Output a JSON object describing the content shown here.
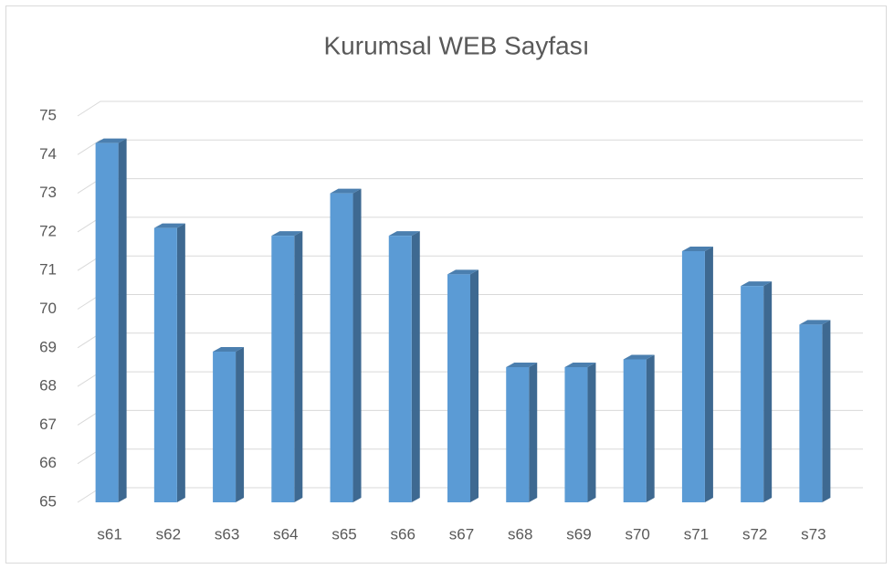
{
  "chart_data": {
    "type": "bar3d",
    "title": "Kurumsal WEB Sayfası",
    "categories": [
      "s61",
      "s62",
      "s63",
      "s64",
      "s65",
      "s66",
      "s67",
      "s68",
      "s69",
      "s70",
      "s71",
      "s72",
      "s73"
    ],
    "values": [
      74.3,
      72.1,
      68.9,
      71.9,
      73.0,
      71.9,
      70.9,
      68.5,
      68.5,
      68.7,
      71.5,
      70.6,
      69.6
    ],
    "color": "#5b9bd5",
    "ylim": [
      65,
      75
    ],
    "yticks": [
      65,
      66,
      67,
      68,
      69,
      70,
      71,
      72,
      73,
      74,
      75
    ],
    "grid": true
  }
}
